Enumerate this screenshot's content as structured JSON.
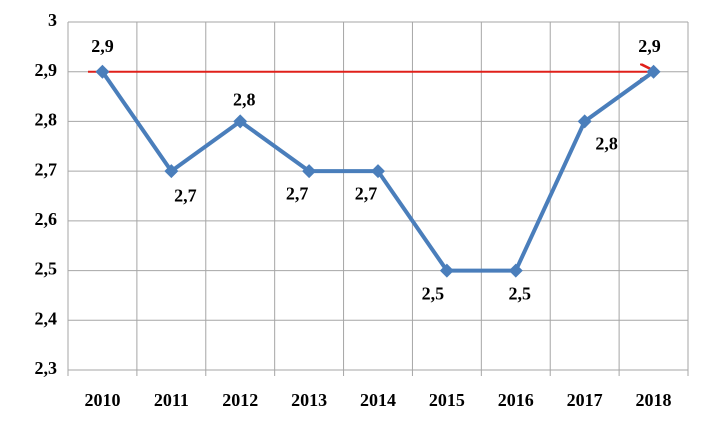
{
  "chart_data": {
    "type": "line",
    "categories": [
      "2010",
      "2011",
      "2012",
      "2013",
      "2014",
      "2015",
      "2016",
      "2017",
      "2018"
    ],
    "series": [
      {
        "color": "#4a7ebb",
        "values": [
          2.9,
          2.7,
          2.8,
          2.7,
          2.7,
          2.5,
          2.5,
          2.8,
          2.9
        ],
        "value_labels": [
          "2,9",
          "2,7",
          "2,8",
          "2,7",
          "2,7",
          "2,5",
          "2,5",
          "2,8",
          "2,9"
        ]
      }
    ],
    "ylim": [
      2.3,
      3
    ],
    "yticks": [
      {
        "value": 2.3,
        "label": "2,3"
      },
      {
        "value": 2.4,
        "label": "2,4"
      },
      {
        "value": 2.5,
        "label": "2,5"
      },
      {
        "value": 2.6,
        "label": "2,6"
      },
      {
        "value": 2.7,
        "label": "2,7"
      },
      {
        "value": 2.8,
        "label": "2,8"
      },
      {
        "value": 2.9,
        "label": "2,9"
      },
      3
    ],
    "grid": true,
    "reference_line": {
      "value": 2.9,
      "color": "#e0201a"
    }
  }
}
